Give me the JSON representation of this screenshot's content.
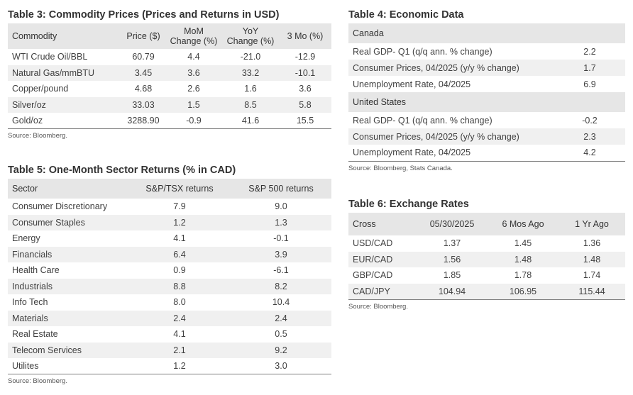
{
  "table3": {
    "title": "Table 3: Commodity Prices (Prices and Returns in USD)",
    "headers": [
      "Commodity",
      "Price ($)",
      "MoM Change (%)",
      "YoY Change (%)",
      "3 Mo (%)"
    ],
    "header_lines": {
      "mom": [
        "MoM",
        "Change (%)"
      ],
      "yoy": [
        "YoY",
        "Change (%)"
      ]
    },
    "rows": [
      [
        "WTI Crude Oil/BBL",
        "60.79",
        "4.4",
        "-21.0",
        "-12.9"
      ],
      [
        "Natural Gas/mmBTU",
        "3.45",
        "3.6",
        "33.2",
        "-10.1"
      ],
      [
        "Copper/pound",
        "4.68",
        "2.6",
        "1.6",
        "3.6"
      ],
      [
        "Silver/oz",
        "33.03",
        "1.5",
        "8.5",
        "5.8"
      ],
      [
        "Gold/oz",
        "3288.90",
        "-0.9",
        "41.6",
        "15.5"
      ]
    ],
    "source": "Source: Bloomberg."
  },
  "table4": {
    "title": "Table 4: Economic Data",
    "sections": [
      {
        "name": "Canada",
        "rows": [
          [
            "Real GDP-  Q1 (q/q ann. % change)",
            "2.2"
          ],
          [
            "Consumer Prices, 04/2025 (y/y % change)",
            "1.7"
          ],
          [
            "Unemployment Rate, 04/2025",
            "6.9"
          ]
        ]
      },
      {
        "name": "United States",
        "rows": [
          [
            "Real GDP-  Q1 (q/q ann. % change)",
            "-0.2"
          ],
          [
            "Consumer Prices, 04/2025 (y/y % change)",
            "2.3"
          ],
          [
            "Unemployment Rate, 04/2025",
            "4.2"
          ]
        ]
      }
    ],
    "source": "Source: Bloomberg, Stats Canada."
  },
  "table5": {
    "title": "Table 5: One-Month Sector Returns (% in CAD)",
    "headers": [
      "Sector",
      "S&P/TSX returns",
      "S&P 500 returns"
    ],
    "rows": [
      [
        "Consumer Discretionary",
        "7.9",
        "9.0"
      ],
      [
        "Consumer Staples",
        "1.2",
        "1.3"
      ],
      [
        "Energy",
        "4.1",
        "-0.1"
      ],
      [
        "Financials",
        "6.4",
        "3.9"
      ],
      [
        "Health Care",
        "0.9",
        "-6.1"
      ],
      [
        "Industrials",
        "8.8",
        "8.2"
      ],
      [
        "Info Tech",
        "8.0",
        "10.4"
      ],
      [
        "Materials",
        "2.4",
        "2.4"
      ],
      [
        "Real Estate",
        "4.1",
        "0.5"
      ],
      [
        "Telecom Services",
        "2.1",
        "9.2"
      ],
      [
        "Utilites",
        "1.2",
        "3.0"
      ]
    ],
    "source": "Source: Bloomberg."
  },
  "table6": {
    "title": "Table 6: Exchange Rates",
    "headers": [
      "Cross",
      "05/30/2025",
      "6 Mos Ago",
      "1 Yr Ago"
    ],
    "rows": [
      [
        "USD/CAD",
        "1.37",
        "1.45",
        "1.36"
      ],
      [
        "EUR/CAD",
        "1.56",
        "1.48",
        "1.48"
      ],
      [
        "GBP/CAD",
        "1.85",
        "1.78",
        "1.74"
      ],
      [
        "CAD/JPY",
        "104.94",
        "106.95",
        "115.44"
      ]
    ],
    "source": "Source: Bloomberg."
  }
}
